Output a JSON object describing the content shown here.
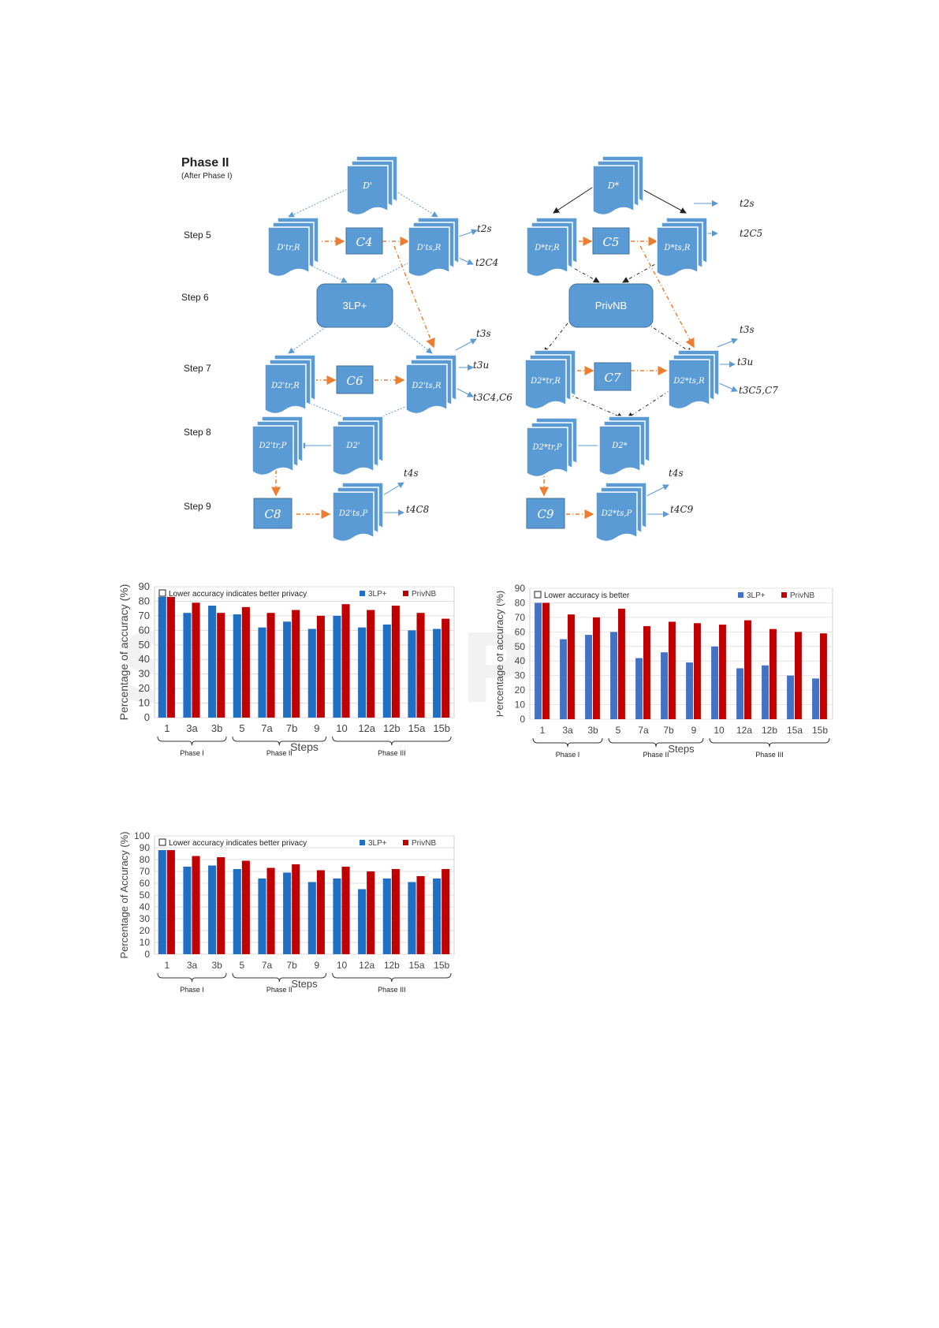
{
  "diagram": {
    "phase_title": "Phase II",
    "phase_sub": "(After Phase I)",
    "steps": [
      "Step 5",
      "Step 6",
      "Step 7",
      "Step 8",
      "Step 9"
    ],
    "left": {
      "top_doc": "D'",
      "train5": "D'tr,R",
      "test5": "D'ts,R",
      "c5": "C4",
      "model": "3LP+",
      "train7": "D2'tr,R",
      "test7": "D2'ts,R",
      "c7": "C6",
      "d8": "D2'",
      "train8": "D2'tr,P",
      "c9": "C8",
      "test9": "D2'ts,P",
      "outs": [
        "t2s",
        "t2C4",
        "t3s",
        "t3u",
        "t3C4,C6",
        "t4s",
        "t4C8"
      ]
    },
    "right": {
      "top_doc": "D*",
      "train5": "D*tr,R",
      "test5": "D*ts,R",
      "c5": "C5",
      "model": "PrivNB",
      "train7": "D2*tr,R",
      "test7": "D2*ts,R",
      "c7": "C7",
      "d8": "D2*",
      "train8": "D2*tr,P",
      "c9": "C9",
      "test9": "D2*ts,P",
      "outs": [
        "t2s",
        "t2C5",
        "t3s",
        "t3u",
        "t3C5,C7",
        "t4s",
        "t4C9"
      ]
    }
  },
  "watermark": "SCITEPRESS",
  "colors": {
    "blue": "#1f6fc5",
    "red": "#c00000",
    "blue_light": "#4472c4",
    "box": "#5b9bd5",
    "orange": "#ed7d31"
  },
  "chart_data": [
    {
      "type": "bar",
      "categories": [
        "1",
        "3a",
        "3b",
        "5",
        "7a",
        "7b",
        "9",
        "10",
        "12a",
        "12b",
        "15a",
        "15b"
      ],
      "series": [
        {
          "name": "3LP+",
          "values": [
            83,
            72,
            77,
            71,
            62,
            66,
            61,
            70,
            62,
            64,
            60,
            61
          ]
        },
        {
          "name": "PrivNB",
          "values": [
            83,
            79,
            72,
            76,
            72,
            74,
            70,
            78,
            74,
            77,
            72,
            68
          ]
        }
      ],
      "annotation": "Lower accuracy indicates better privacy",
      "ylabel": "Percentage of accuracy (%)",
      "xlabel": "Steps",
      "ylim": [
        0,
        90
      ],
      "yticks": [
        "0",
        "10",
        "20",
        "30",
        "40",
        "50",
        "60",
        "70",
        "80",
        "90"
      ],
      "groups": [
        "Phase I",
        "Phase II",
        "Phase III"
      ]
    },
    {
      "type": "bar",
      "categories": [
        "1",
        "3a",
        "3b",
        "5",
        "7a",
        "7b",
        "9",
        "10",
        "12a",
        "12b",
        "15a",
        "15b"
      ],
      "series": [
        {
          "name": "3LP+",
          "values": [
            80,
            55,
            58,
            60,
            42,
            46,
            39,
            50,
            35,
            37,
            30,
            28
          ]
        },
        {
          "name": "PrivNB",
          "values": [
            80,
            72,
            70,
            76,
            64,
            67,
            66,
            65,
            68,
            62,
            60,
            59
          ]
        }
      ],
      "annotation": "Lower accuracy is better",
      "ylabel": "Percentage of accuracy (%)",
      "xlabel": "Steps",
      "ylim": [
        0,
        90
      ],
      "yticks": [
        "0",
        "10",
        "20",
        "30",
        "40",
        "50",
        "60",
        "70",
        "80",
        "90"
      ],
      "groups": [
        "Phase I",
        "Phase II",
        "Phase III"
      ]
    },
    {
      "type": "bar",
      "categories": [
        "1",
        "3a",
        "3b",
        "5",
        "7a",
        "7b",
        "9",
        "10",
        "12a",
        "12b",
        "15a",
        "15b"
      ],
      "series": [
        {
          "name": "3LP+",
          "values": [
            88,
            74,
            75,
            72,
            64,
            69,
            61,
            64,
            55,
            64,
            61,
            64
          ]
        },
        {
          "name": "PrivNB",
          "values": [
            88,
            83,
            82,
            79,
            73,
            76,
            71,
            74,
            70,
            72,
            66,
            72
          ]
        }
      ],
      "annotation": "Lower accuracy indicates better privacy",
      "ylabel": "Percentage of Accuracy (%)",
      "xlabel": "Steps",
      "ylim": [
        0,
        100
      ],
      "yticks": [
        "0",
        "10",
        "20",
        "30",
        "40",
        "50",
        "60",
        "70",
        "80",
        "90",
        "100"
      ],
      "groups": [
        "Phase I",
        "Phase II",
        "Phase III"
      ]
    }
  ]
}
